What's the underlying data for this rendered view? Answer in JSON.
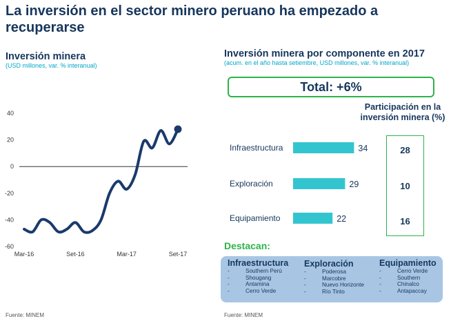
{
  "title": "La inversión en el sector minero peruano ha empezado a recuperarse",
  "left": {
    "heading": "Inversión minera",
    "subheading": "(USD millones, var. % interanual)",
    "source": "Fuente: MINEM"
  },
  "right": {
    "heading": "Inversión minera por componente en 2017",
    "subheading": "(acum. en el año hasta setiembre, USD millones, var. % interanual)",
    "total": "Total: +6%",
    "participation_title": "Participación en la inversión minera (%)",
    "destacan": "Destacan:",
    "source": "Fuente: MINEM",
    "columns": [
      {
        "title": "Infraestructura",
        "items": [
          "Southern Perú",
          "Shougang",
          "Antamina",
          "Cerro Verde"
        ]
      },
      {
        "title": "Exploración",
        "items": [
          "Poderosa",
          "Marcobre",
          "Nuevo Horizonte",
          "Río Tinto"
        ]
      },
      {
        "title": "Equipamiento",
        "items": [
          "Cerro Verde",
          "Southern",
          "Chinalco",
          "Antapaccay"
        ]
      }
    ]
  },
  "colors": {
    "navy": "#16365c",
    "cyan": "#00a6c8",
    "teal_bar": "#33c5cf",
    "green": "#2db34a",
    "panel": "#a8c6e4",
    "line": "#1b3a6b"
  },
  "chart_data": [
    {
      "type": "line",
      "ylim": [
        -60,
        40
      ],
      "yticks": [
        -60,
        -40,
        -20,
        0,
        20,
        40
      ],
      "xticks": [
        "Mar-16",
        "Set-16",
        "Mar-17",
        "Set-17"
      ],
      "grid": false,
      "x": [
        "Mar-16",
        "Abr-16",
        "May-16",
        "Jun-16",
        "Jul-16",
        "Ago-16",
        "Set-16",
        "Oct-16",
        "Nov-16",
        "Dic-16",
        "Ene-17",
        "Feb-17",
        "Mar-17",
        "Abr-17",
        "May-17",
        "Jun-17",
        "Jul-17",
        "Ago-17",
        "Set-17"
      ],
      "values": [
        -47,
        -49,
        -40,
        -42,
        -49,
        -47,
        -42,
        -49,
        -48,
        -40,
        -20,
        -11,
        -17,
        -6,
        19,
        14,
        27,
        17,
        28
      ]
    },
    {
      "type": "bar",
      "orientation": "horizontal",
      "categories": [
        "Infraestructura",
        "Exploración",
        "Equipamiento"
      ],
      "values": [
        34,
        29,
        22
      ],
      "participation": [
        28,
        10,
        16
      ]
    }
  ]
}
